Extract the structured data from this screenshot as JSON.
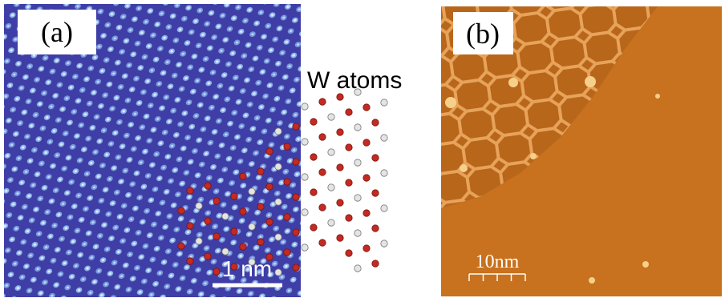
{
  "panels": [
    {
      "label": "(a)",
      "annotation": "W atoms",
      "scale_bar": "1 nm"
    },
    {
      "label": "(b)",
      "scale_bar": "10nm"
    }
  ]
}
